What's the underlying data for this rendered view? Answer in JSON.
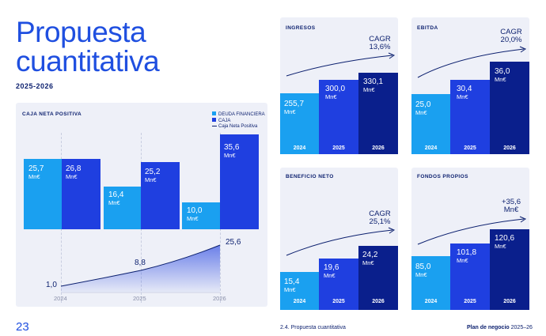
{
  "header": {
    "title_line1": "Propuesta",
    "title_line2": "cuantitativa",
    "years": "2025-2026"
  },
  "caja": {
    "title": "CAJA NETA POSITIVA",
    "legend": [
      "DEUDA FINANCIERA",
      "CAJA",
      "Caja Neta Positiva"
    ],
    "years": [
      "2024",
      "2025",
      "2026"
    ],
    "deuda": [
      "25,7",
      "16,4",
      "10,0"
    ],
    "caja": [
      "26,8",
      "25,2",
      "35,6"
    ],
    "neta": [
      "1,0",
      "8,8",
      "25,6"
    ],
    "unit": "Mn€"
  },
  "panels": {
    "ingresos": {
      "title": "INGRESOS",
      "cagr_label": "CAGR",
      "cagr_value": "13,6%",
      "values": [
        "255,7",
        "300,0",
        "330,1"
      ],
      "unit": "Mn€",
      "years": [
        "2024",
        "2025",
        "2026"
      ]
    },
    "ebitda": {
      "title": "EBITDA",
      "cagr_label": "CAGR",
      "cagr_value": "20,0%",
      "values": [
        "25,0",
        "30,4",
        "36,0"
      ],
      "unit": "Mn€",
      "years": [
        "2024",
        "2025",
        "2026"
      ]
    },
    "beneficio": {
      "title": "BENEFICIO NETO",
      "cagr_label": "CAGR",
      "cagr_value": "25,1%",
      "values": [
        "15,4",
        "19,6",
        "24,2"
      ],
      "unit": "Mn€",
      "years": [
        "2024",
        "2025",
        "2026"
      ]
    },
    "fondos": {
      "title": "FONDOS PROPIOS",
      "cagr_label": "+35,6",
      "cagr_value": "Mn€",
      "values": [
        "85,0",
        "101,8",
        "120,6"
      ],
      "unit": "Mn€",
      "years": [
        "2024",
        "2025",
        "2026"
      ]
    }
  },
  "footer": {
    "page": "23",
    "section": "2.4. Propuesta cuantitativa",
    "right_bold": "Plan de negocio",
    "right_years": "2025–26"
  },
  "colors": {
    "light": "#1aa0f0",
    "mid": "#1f3fe0",
    "dark": "#0a1f8c",
    "panel": "#eef0f8"
  },
  "chart_data": [
    {
      "type": "bar",
      "title": "CAJA NETA POSITIVA",
      "categories": [
        "2024",
        "2025",
        "2026"
      ],
      "series": [
        {
          "name": "DEUDA FINANCIERA",
          "values": [
            25.7,
            16.4,
            10.0
          ]
        },
        {
          "name": "CAJA",
          "values": [
            26.8,
            25.2,
            35.6
          ]
        },
        {
          "name": "Caja Neta Positiva",
          "values": [
            1.0,
            8.8,
            25.6
          ]
        }
      ]
    },
    {
      "type": "bar",
      "title": "INGRESOS",
      "categories": [
        "2024",
        "2025",
        "2026"
      ],
      "values": [
        255.7,
        300.0,
        330.1
      ]
    },
    {
      "type": "bar",
      "title": "EBITDA",
      "categories": [
        "2024",
        "2025",
        "2026"
      ],
      "values": [
        25.0,
        30.4,
        36.0
      ]
    },
    {
      "type": "bar",
      "title": "BENEFICIO NETO",
      "categories": [
        "2024",
        "2025",
        "2026"
      ],
      "values": [
        15.4,
        19.6,
        24.2
      ]
    },
    {
      "type": "bar",
      "title": "FONDOS PROPIOS",
      "categories": [
        "2024",
        "2025",
        "2026"
      ],
      "values": [
        85.0,
        101.8,
        120.6
      ]
    }
  ]
}
